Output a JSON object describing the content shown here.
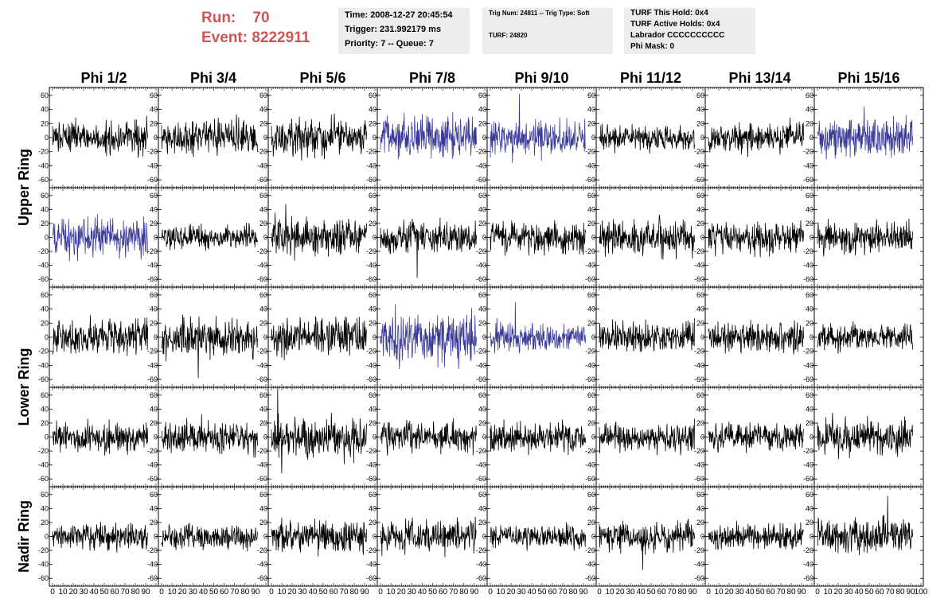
{
  "header": {
    "run_label": "Run:",
    "run_value": "70",
    "event_label": "Event:",
    "event_value": "8222911",
    "accent_color": "#cc5555"
  },
  "panels": {
    "time": {
      "lines": [
        "Time: 2008-12-27 20:45:54",
        "Trigger: 231.992179 ms",
        "Priority: 7 -- Queue: 7"
      ]
    },
    "trig": {
      "line1": "Trig Num: 24811 -- Trig Type: Soft",
      "line2": "TURF: 24820"
    },
    "turf": {
      "lines": [
        "TURF This Hold: 0x4",
        "TURF Active Holds: 0x4",
        "Labrador CCCCCCCCCC",
        "Phi Mask: 0"
      ]
    }
  },
  "chart_data": {
    "type": "line",
    "title": "",
    "xlabel": "",
    "ylabel": "",
    "columns": [
      "Phi 1/2",
      "Phi 3/4",
      "Phi 5/6",
      "Phi 7/8",
      "Phi 9/10",
      "Phi 11/12",
      "Phi 13/14",
      "Phi 15/16"
    ],
    "row_labels": [
      "Upper Ring",
      "Lower Ring",
      "Nadir Ring"
    ],
    "rows_per_ring": [
      2,
      2,
      1
    ],
    "rows": 5,
    "ylim": [
      -70,
      70
    ],
    "y_ticks": [
      -60,
      -40,
      -20,
      0,
      20,
      40,
      60
    ],
    "xlim": [
      0,
      100
    ],
    "x_ticks": [
      0,
      10,
      20,
      30,
      40,
      50,
      60,
      70,
      80,
      90,
      100
    ],
    "x_extent": 92,
    "samples_per_trace": 260,
    "highlight_color": "#3a3a9a",
    "default_color": "#000000",
    "highlighted": [
      [
        0,
        3
      ],
      [
        0,
        4
      ],
      [
        0,
        7
      ],
      [
        1,
        0
      ],
      [
        2,
        3
      ],
      [
        2,
        4
      ]
    ],
    "spikes": [
      {
        "row": 0,
        "col": 4,
        "x": 28,
        "y": 62
      },
      {
        "row": 0,
        "col": 7,
        "x": 45,
        "y": 44
      },
      {
        "row": 1,
        "col": 3,
        "x": 35,
        "y": -58
      },
      {
        "row": 1,
        "col": 2,
        "x": 14,
        "y": 48
      },
      {
        "row": 2,
        "col": 1,
        "x": 35,
        "y": -58
      },
      {
        "row": 2,
        "col": 4,
        "x": 24,
        "y": 50
      },
      {
        "row": 3,
        "col": 2,
        "x": 6,
        "y": 70
      },
      {
        "row": 3,
        "col": 2,
        "x": 10,
        "y": -52
      },
      {
        "row": 4,
        "col": 5,
        "x": 42,
        "y": -48
      },
      {
        "row": 4,
        "col": 7,
        "x": 68,
        "y": 58
      }
    ],
    "amplitude": [
      [
        12,
        12,
        14,
        15,
        13,
        9,
        11,
        14
      ],
      [
        14,
        9,
        14,
        12,
        11,
        13,
        11,
        12
      ],
      [
        13,
        13,
        13,
        18,
        10,
        11,
        11,
        9
      ],
      [
        11,
        12,
        14,
        11,
        11,
        10,
        10,
        13
      ],
      [
        10,
        9,
        12,
        11,
        8,
        10,
        9,
        13
      ]
    ]
  }
}
